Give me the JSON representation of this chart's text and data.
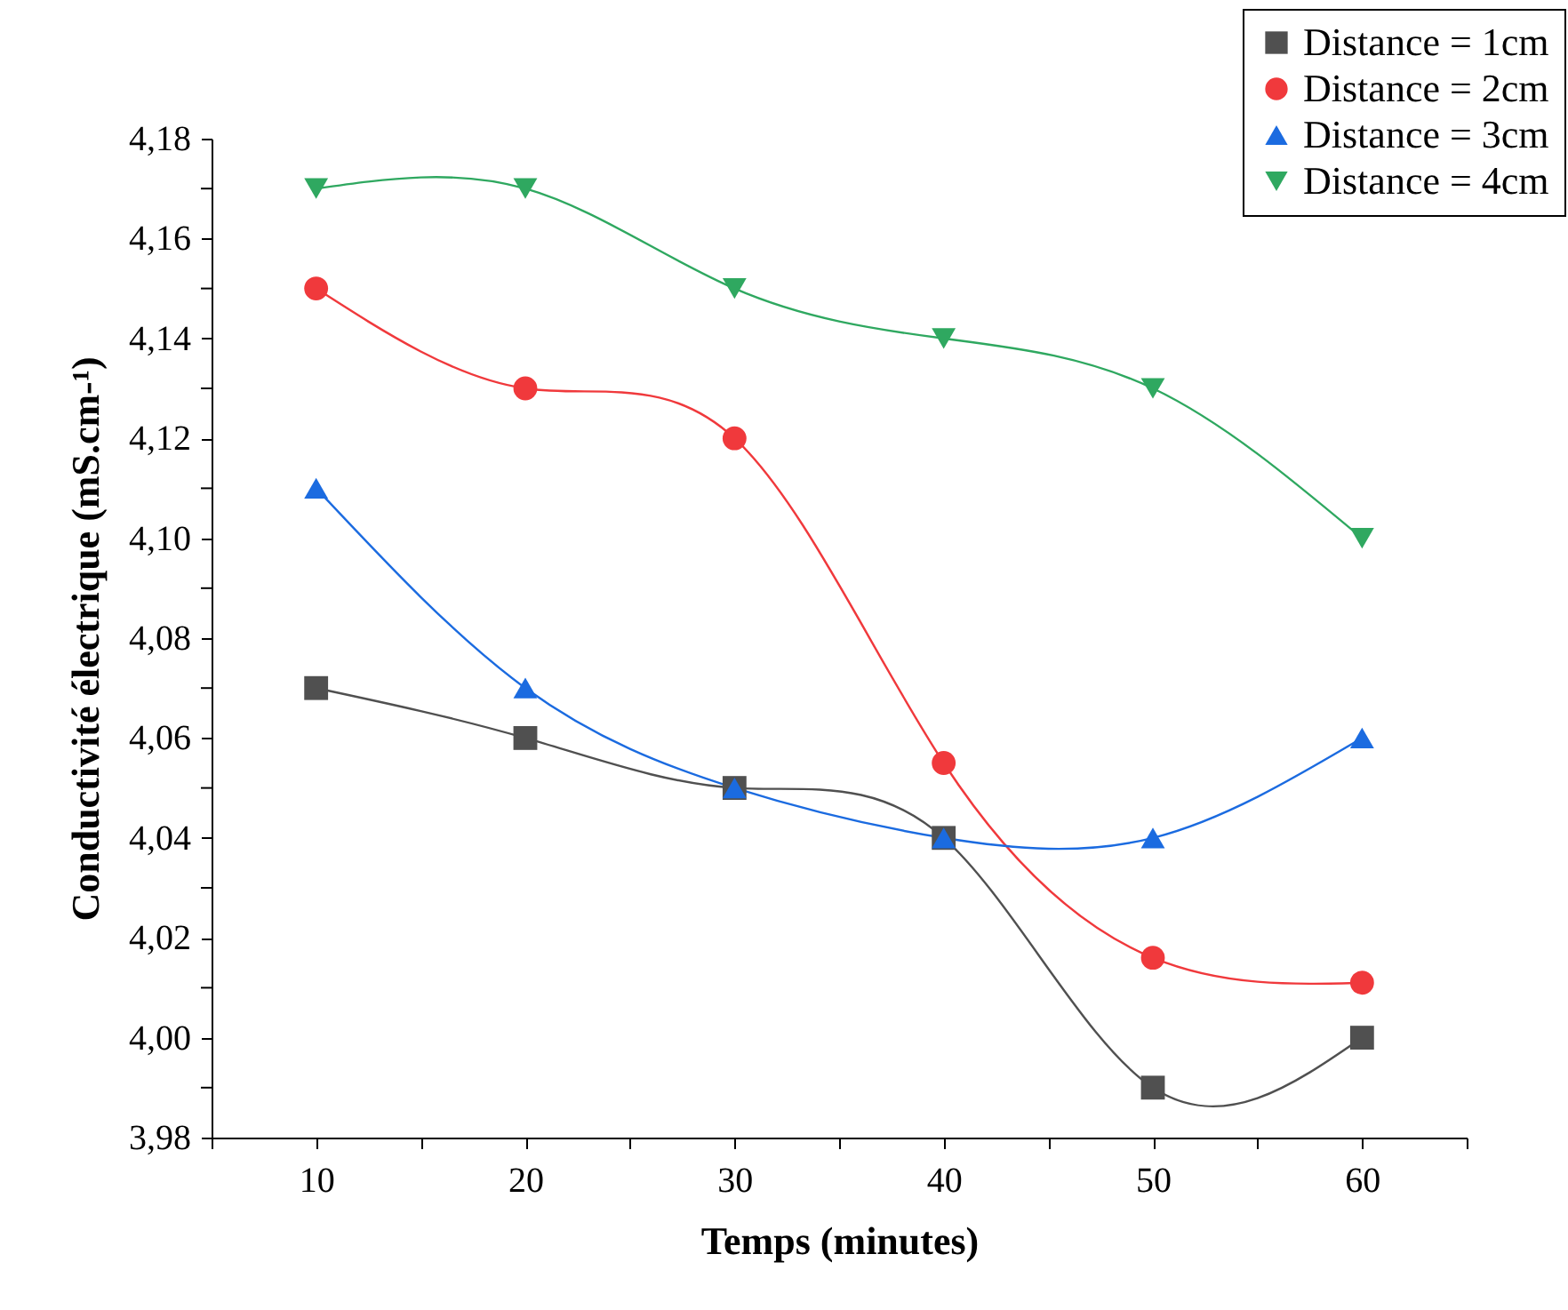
{
  "chart_data": {
    "type": "line",
    "xlabel": "Temps (minutes)",
    "ylabel": "Conductivité électrique (mS.cm-¹)",
    "x": [
      10,
      20,
      30,
      40,
      50,
      60
    ],
    "series": [
      {
        "name": "Distance = 1cm",
        "color": "#505050",
        "marker": "square",
        "values": [
          4.07,
          4.06,
          4.05,
          4.04,
          3.99,
          4.0
        ]
      },
      {
        "name": "Distance = 2cm",
        "color": "#f0393c",
        "marker": "circle",
        "values": [
          4.15,
          4.13,
          4.12,
          4.055,
          4.016,
          4.011
        ]
      },
      {
        "name": "Distance = 3cm",
        "color": "#1b6be0",
        "marker": "triangle",
        "values": [
          4.11,
          4.07,
          4.05,
          4.04,
          4.04,
          4.06
        ]
      },
      {
        "name": "Distance = 4cm",
        "color": "#2fa860",
        "marker": "triangle-down",
        "values": [
          4.17,
          4.17,
          4.15,
          4.14,
          4.13,
          4.1
        ]
      }
    ],
    "xlim": [
      5,
      65
    ],
    "xticks": [
      {
        "value": 5,
        "label": null
      },
      10,
      {
        "value": 15,
        "label": null
      },
      20,
      {
        "value": 25,
        "label": null
      },
      30,
      {
        "value": 35,
        "label": null
      },
      40,
      {
        "value": 45,
        "label": null
      },
      50,
      {
        "value": 55,
        "label": null
      },
      60,
      {
        "value": 65,
        "label": null
      }
    ],
    "ylim": [
      3.98,
      4.18
    ],
    "yticks": [
      {
        "value": 3.98,
        "label": "3,98"
      },
      {
        "value": 3.99,
        "label": null
      },
      {
        "value": 4.0,
        "label": "4,00"
      },
      {
        "value": 4.01,
        "label": null
      },
      {
        "value": 4.02,
        "label": "4,02"
      },
      {
        "value": 4.03,
        "label": null
      },
      {
        "value": 4.04,
        "label": "4,04"
      },
      {
        "value": 4.05,
        "label": null
      },
      {
        "value": 4.06,
        "label": "4,06"
      },
      {
        "value": 4.07,
        "label": null
      },
      {
        "value": 4.08,
        "label": "4,08"
      },
      {
        "value": 4.09,
        "label": null
      },
      {
        "value": 4.1,
        "label": "4,10"
      },
      {
        "value": 4.11,
        "label": null
      },
      {
        "value": 4.12,
        "label": "4,12"
      },
      {
        "value": 4.13,
        "label": null
      },
      {
        "value": 4.14,
        "label": "4,14"
      },
      {
        "value": 4.15,
        "label": null
      },
      {
        "value": 4.16,
        "label": "4,16"
      },
      {
        "value": 4.17,
        "label": null
      },
      {
        "value": 4.18,
        "label": "4,18"
      }
    ],
    "grid": false,
    "legend": "top right",
    "line_style": "solid"
  }
}
